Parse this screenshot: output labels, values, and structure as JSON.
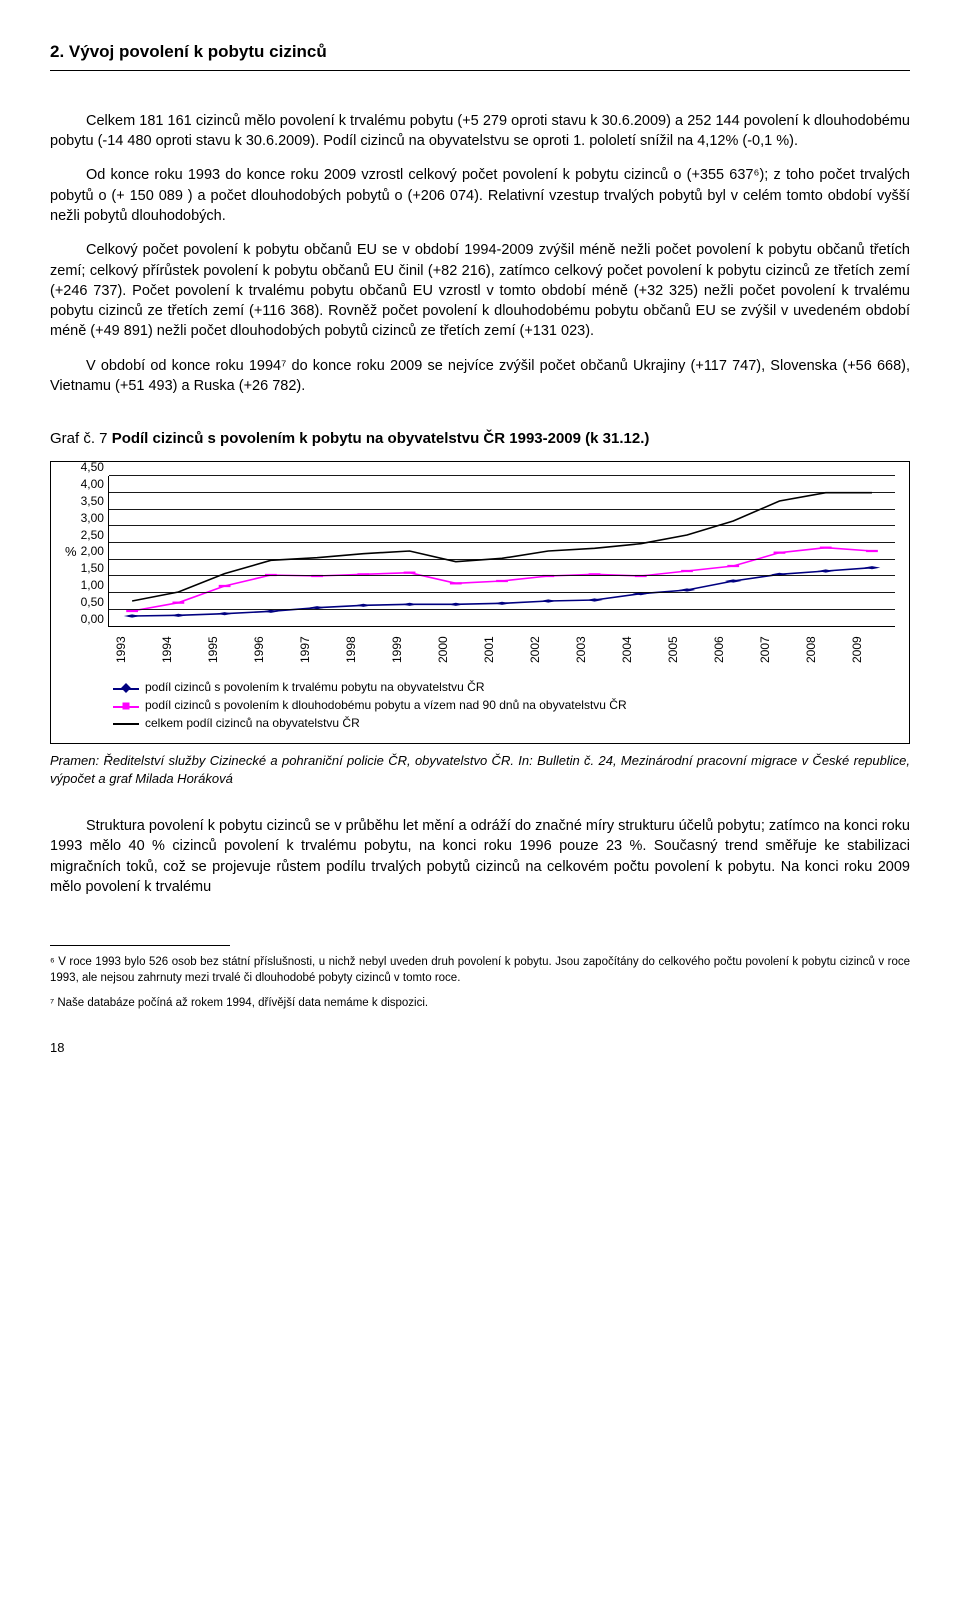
{
  "section_title": "2. Vývoj povolení k pobytu cizinců",
  "paragraphs": {
    "p1": "Celkem 181 161 cizinců mělo povolení k trvalému pobytu (+5 279 oproti stavu k 30.6.2009) a 252 144 povolení k dlouhodobému pobytu (-14 480 oproti stavu k 30.6.2009). Podíl cizinců na obyvatelstvu se oproti 1. pololetí snížil na 4,12% (-0,1 %).",
    "p2": "Od konce roku 1993 do konce roku 2009 vzrostl celkový počet povolení k pobytu cizinců o (+355 637⁶); z toho počet trvalých pobytů o (+ 150 089 ) a počet dlouhodobých pobytů o (+206 074). Relativní vzestup trvalých pobytů byl v celém tomto období vyšší nežli pobytů dlouhodobých.",
    "p3": "Celkový počet povolení k pobytu občanů EU se v období 1994-2009 zvýšil méně nežli počet povolení k pobytu občanů třetích zemí; celkový přírůstek povolení k pobytu občanů EU činil (+82 216), zatímco celkový počet povolení k pobytu cizinců ze třetích zemí (+246 737). Počet povolení k trvalému pobytu občanů EU vzrostl v tomto období méně (+32 325) nežli počet povolení k trvalému pobytu cizinců ze třetích zemí (+116 368). Rovněž počet povolení k dlouhodobému pobytu občanů EU se zvýšil v uvedeném období méně (+49 891) nežli počet dlouhodobých pobytů cizinců ze třetích zemí (+131 023).",
    "p4": "V období od konce roku 1994⁷ do konce roku 2009 se nejvíce zvýšil počet občanů Ukrajiny (+117 747), Slovenska (+56 668), Vietnamu (+51 493) a Ruska (+26 782).",
    "p5": "Struktura povolení k pobytu cizinců se v průběhu let mění a odráží do značné míry strukturu účelů pobytu; zatímco na konci roku 1993 mělo 40 % cizinců povolení k trvalému pobytu, na konci roku 1996 pouze 23 %. Současný trend směřuje ke stabilizaci migračních toků, což se projevuje růstem podílu trvalých pobytů cizinců na celkovém počtu povolení k pobytu. Na konci roku 2009 mělo povolení k trvalému"
  },
  "chart_title": {
    "prefix": "Graf č. 7 ",
    "bold": "Podíl cizinců s povolením k pobytu na obyvatelstvu ČR 1993-2009 (k 31.12.)"
  },
  "chart": {
    "type": "line",
    "y_unit": "%",
    "ylim": [
      0,
      4.5
    ],
    "ytick_step": 0.5,
    "y_labels": [
      "0,00",
      "0,50",
      "1,00",
      "1,50",
      "2,00",
      "2,50",
      "3,00",
      "3,50",
      "4,00",
      "4,50"
    ],
    "categories": [
      "1993",
      "1994",
      "1995",
      "1996",
      "1997",
      "1998",
      "1999",
      "2000",
      "2001",
      "2002",
      "2003",
      "2004",
      "2005",
      "2006",
      "2007",
      "2008",
      "2009"
    ],
    "series": [
      {
        "name": "trvaly",
        "label": "podíl cizinců s povolením k trvalému pobytu na obyvatelstvu ČR",
        "color": "#000080",
        "marker": "diamond",
        "values": [
          0.3,
          0.32,
          0.37,
          0.44,
          0.55,
          0.62,
          0.65,
          0.65,
          0.68,
          0.75,
          0.78,
          0.97,
          1.08,
          1.35,
          1.55,
          1.65,
          1.75
        ]
      },
      {
        "name": "dlouhodoby",
        "label": "podíl cizinců s povolením k dlouhodobému pobytu a vízem nad 90 dnů na obyvatelstvu ČR",
        "color": "#ff00ff",
        "marker": "square",
        "values": [
          0.45,
          0.7,
          1.2,
          1.53,
          1.5,
          1.55,
          1.6,
          1.28,
          1.35,
          1.5,
          1.55,
          1.5,
          1.65,
          1.8,
          2.2,
          2.35,
          2.25
        ]
      },
      {
        "name": "celkem",
        "label": "celkem podíl cizinců na obyvatelstvu ČR",
        "color": "#000000",
        "marker": "none",
        "values": [
          0.75,
          1.02,
          1.57,
          1.97,
          2.05,
          2.17,
          2.25,
          1.93,
          2.03,
          2.25,
          2.33,
          2.47,
          2.73,
          3.15,
          3.75,
          4.0,
          4.0
        ]
      }
    ],
    "grid_color": "#000000",
    "background_color": "#ffffff",
    "line_width": 1.6,
    "marker_size": 6,
    "label_fontsize": 12
  },
  "source": "Pramen: Ředitelství služby Cizinecké a pohraniční policie ČR, obyvatelstvo ČR. In: Bulletin č. 24, Mezinárodní pracovní migrace v České republice, výpočet a graf Milada Horáková",
  "footnotes": {
    "f6": "⁶ V roce 1993 bylo 526 osob bez státní příslušnosti, u nichž nebyl uveden druh povolení k pobytu. Jsou započítány do celkového počtu povolení k pobytu cizinců v roce 1993, ale nejsou zahrnuty mezi trvalé či dlouhodobé pobyty cizinců v tomto roce.",
    "f7": "⁷ Naše databáze počíná až rokem 1994, dřívější data nemáme k dispozici."
  },
  "page_number": "18"
}
